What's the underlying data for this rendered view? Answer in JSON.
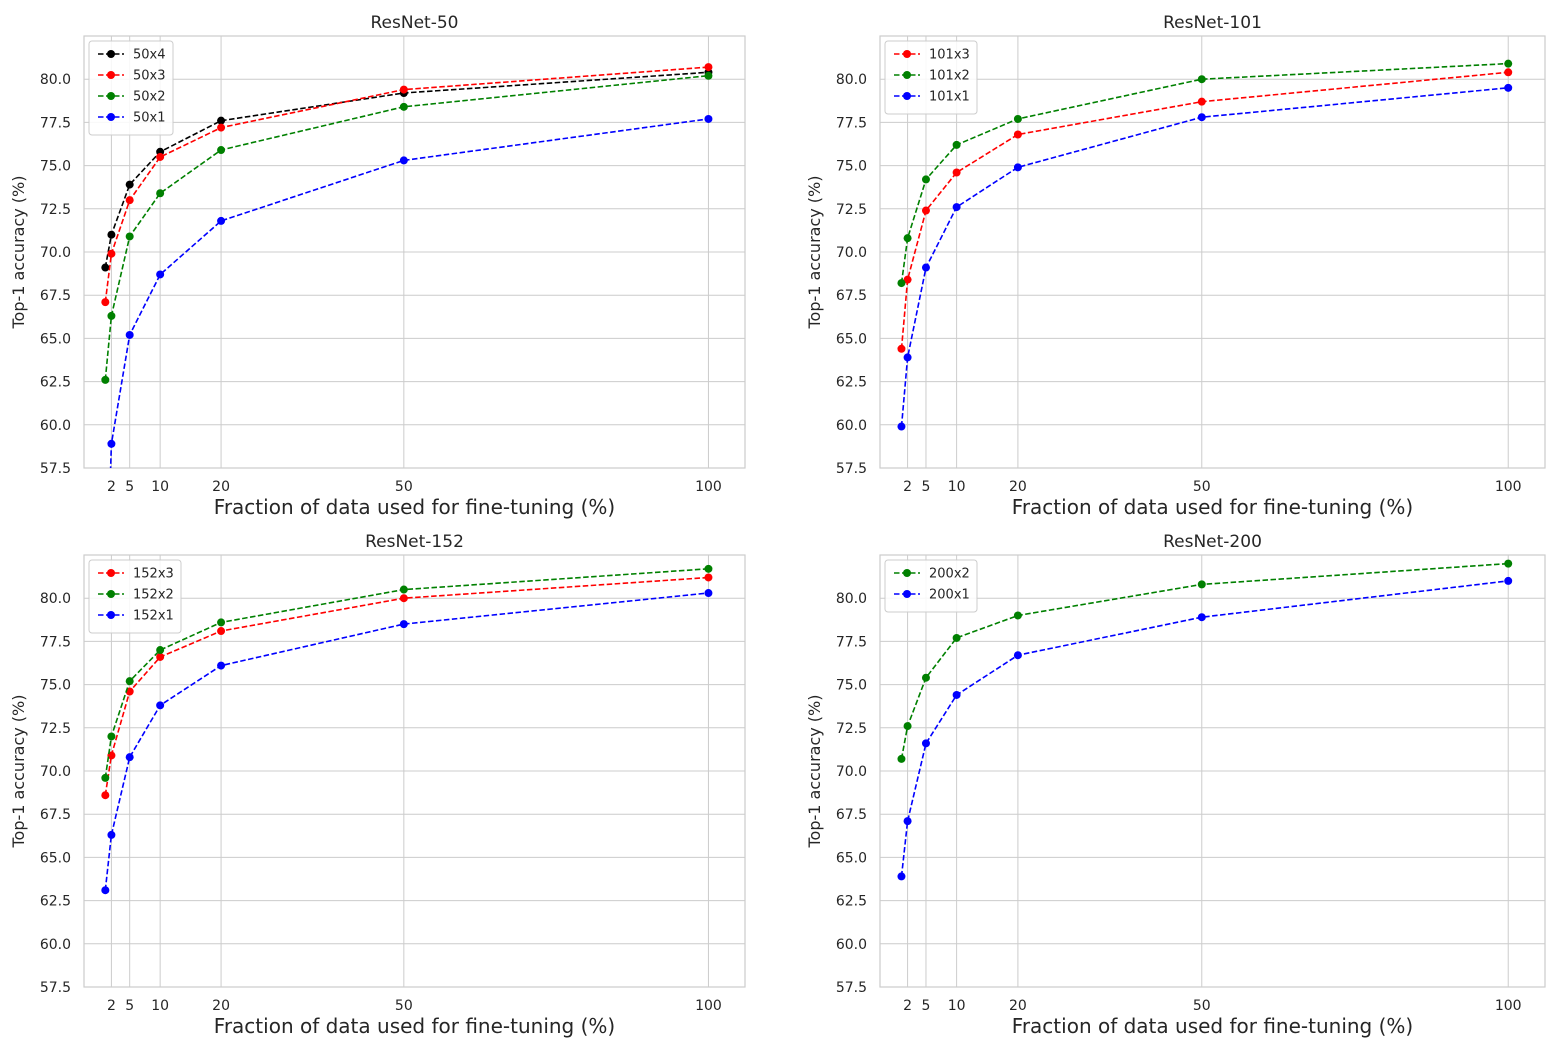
{
  "chart_data": [
    {
      "type": "line",
      "title": "ResNet-50",
      "xlabel": "Fraction of data used for fine-tuning (%)",
      "ylabel": "Top-1 accuracy (%)",
      "x": [
        1,
        2,
        5,
        10,
        20,
        50,
        100
      ],
      "xticks": [
        2,
        5,
        10,
        20,
        50,
        100
      ],
      "ylim": [
        57.5,
        82.5
      ],
      "yticks": [
        57.5,
        60.0,
        62.5,
        65.0,
        67.5,
        70.0,
        72.5,
        75.0,
        77.5,
        80.0
      ],
      "grid": true,
      "legend": "top-left",
      "series": [
        {
          "name": "50x4",
          "color": "#000000",
          "values": [
            69.1,
            71.0,
            73.9,
            75.8,
            77.6,
            79.2,
            80.4
          ]
        },
        {
          "name": "50x3",
          "color": "#ff0000",
          "values": [
            67.1,
            69.9,
            73.0,
            75.5,
            77.2,
            79.4,
            80.7
          ]
        },
        {
          "name": "50x2",
          "color": "#008000",
          "values": [
            62.6,
            66.3,
            70.9,
            73.4,
            75.9,
            78.4,
            80.2
          ]
        },
        {
          "name": "50x1",
          "color": "#0000ff",
          "values": [
            null,
            58.9,
            65.2,
            68.7,
            71.8,
            75.3,
            77.7
          ]
        }
      ]
    },
    {
      "type": "line",
      "title": "ResNet-101",
      "xlabel": "Fraction of data used for fine-tuning (%)",
      "ylabel": "Top-1 accuracy (%)",
      "x": [
        1,
        2,
        5,
        10,
        20,
        50,
        100
      ],
      "xticks": [
        2,
        5,
        10,
        20,
        50,
        100
      ],
      "ylim": [
        57.5,
        82.5
      ],
      "yticks": [
        57.5,
        60.0,
        62.5,
        65.0,
        67.5,
        70.0,
        72.5,
        75.0,
        77.5,
        80.0
      ],
      "grid": true,
      "legend": "top-left",
      "series": [
        {
          "name": "101x3",
          "color": "#ff0000",
          "values": [
            64.4,
            68.4,
            72.4,
            74.6,
            76.8,
            78.7,
            80.4
          ]
        },
        {
          "name": "101x2",
          "color": "#008000",
          "values": [
            68.2,
            70.8,
            74.2,
            76.2,
            77.7,
            80.0,
            80.9
          ]
        },
        {
          "name": "101x1",
          "color": "#0000ff",
          "values": [
            59.9,
            63.9,
            69.1,
            72.6,
            74.9,
            77.8,
            79.5
          ]
        }
      ]
    },
    {
      "type": "line",
      "title": "ResNet-152",
      "xlabel": "Fraction of data used for fine-tuning (%)",
      "ylabel": "Top-1 accuracy (%)",
      "x": [
        1,
        2,
        5,
        10,
        20,
        50,
        100
      ],
      "xticks": [
        2,
        5,
        10,
        20,
        50,
        100
      ],
      "ylim": [
        57.5,
        82.5
      ],
      "yticks": [
        57.5,
        60.0,
        62.5,
        65.0,
        67.5,
        70.0,
        72.5,
        75.0,
        77.5,
        80.0
      ],
      "grid": true,
      "legend": "top-left",
      "series": [
        {
          "name": "152x3",
          "color": "#ff0000",
          "values": [
            68.6,
            70.9,
            74.6,
            76.6,
            78.1,
            80.0,
            81.2
          ]
        },
        {
          "name": "152x2",
          "color": "#008000",
          "values": [
            69.6,
            72.0,
            75.2,
            77.0,
            78.6,
            80.5,
            81.7
          ]
        },
        {
          "name": "152x1",
          "color": "#0000ff",
          "values": [
            63.1,
            66.3,
            70.8,
            73.8,
            76.1,
            78.5,
            80.3
          ]
        }
      ]
    },
    {
      "type": "line",
      "title": "ResNet-200",
      "xlabel": "Fraction of data used for fine-tuning (%)",
      "ylabel": "Top-1 accuracy (%)",
      "x": [
        1,
        2,
        5,
        10,
        20,
        50,
        100
      ],
      "xticks": [
        2,
        5,
        10,
        20,
        50,
        100
      ],
      "ylim": [
        57.5,
        82.5
      ],
      "yticks": [
        57.5,
        60.0,
        62.5,
        65.0,
        67.5,
        70.0,
        72.5,
        75.0,
        77.5,
        80.0
      ],
      "grid": true,
      "legend": "top-left",
      "series": [
        {
          "name": "200x2",
          "color": "#008000",
          "values": [
            70.7,
            72.6,
            75.4,
            77.7,
            79.0,
            80.8,
            82.0
          ]
        },
        {
          "name": "200x1",
          "color": "#0000ff",
          "values": [
            63.9,
            67.1,
            71.6,
            74.4,
            76.7,
            78.9,
            81.0
          ]
        }
      ]
    }
  ]
}
